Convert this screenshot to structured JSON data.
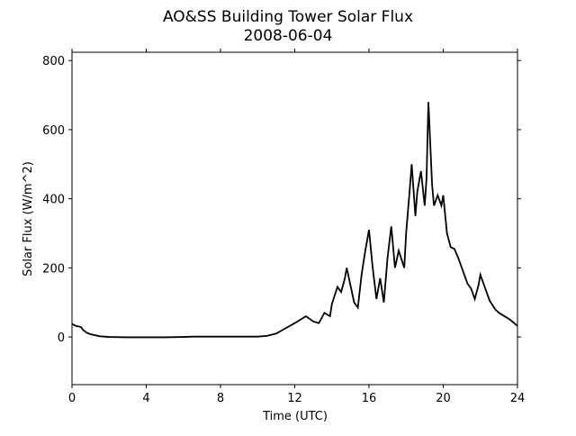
{
  "chart_data": {
    "type": "line",
    "title": "AO&SS Building Tower Solar Flux",
    "subtitle": "2008-06-04",
    "xlabel": "Time (UTC)",
    "ylabel": "Solar Flux (W/m^2)",
    "xlim": [
      0,
      24
    ],
    "xticks": [
      0,
      4,
      8,
      12,
      16,
      20,
      24
    ],
    "ylim": [
      -138,
      824
    ],
    "yticks": [
      0,
      200,
      400,
      600,
      800
    ],
    "series": [
      {
        "name": "Solar Flux",
        "color": "#000000",
        "x": [
          0,
          0.2,
          0.4,
          0.5,
          0.6,
          0.8,
          1,
          1.5,
          2,
          3,
          4,
          5,
          6,
          6.5,
          7,
          8,
          9,
          10,
          10.5,
          11,
          11.5,
          12,
          12.3,
          12.6,
          13,
          13.3,
          13.6,
          13.9,
          14,
          14.3,
          14.5,
          14.7,
          14.8,
          15,
          15.2,
          15.4,
          15.6,
          15.8,
          16,
          16.2,
          16.4,
          16.6,
          16.8,
          17,
          17.2,
          17.4,
          17.6,
          17.9,
          18,
          18.2,
          18.3,
          18.5,
          18.6,
          18.8,
          19,
          19.1,
          19.2,
          19.4,
          19.5,
          19.7,
          19.9,
          20,
          20.2,
          20.4,
          20.6,
          20.8,
          21,
          21.3,
          21.5,
          21.7,
          21.9,
          22,
          22.2,
          22.5,
          22.8,
          23,
          23.3,
          23.6,
          24
        ],
        "values": [
          38,
          32,
          30,
          28,
          20,
          12,
          8,
          2,
          0,
          -1,
          -1,
          -1,
          0,
          1,
          1,
          1,
          1,
          1,
          3,
          10,
          25,
          40,
          50,
          60,
          45,
          40,
          70,
          60,
          95,
          145,
          130,
          170,
          200,
          150,
          100,
          85,
          180,
          250,
          310,
          200,
          110,
          170,
          100,
          230,
          320,
          200,
          250,
          200,
          300,
          430,
          500,
          350,
          420,
          480,
          380,
          460,
          680,
          440,
          380,
          410,
          380,
          410,
          300,
          260,
          255,
          230,
          200,
          155,
          140,
          110,
          150,
          180,
          150,
          105,
          80,
          70,
          60,
          50,
          32
        ]
      }
    ]
  }
}
